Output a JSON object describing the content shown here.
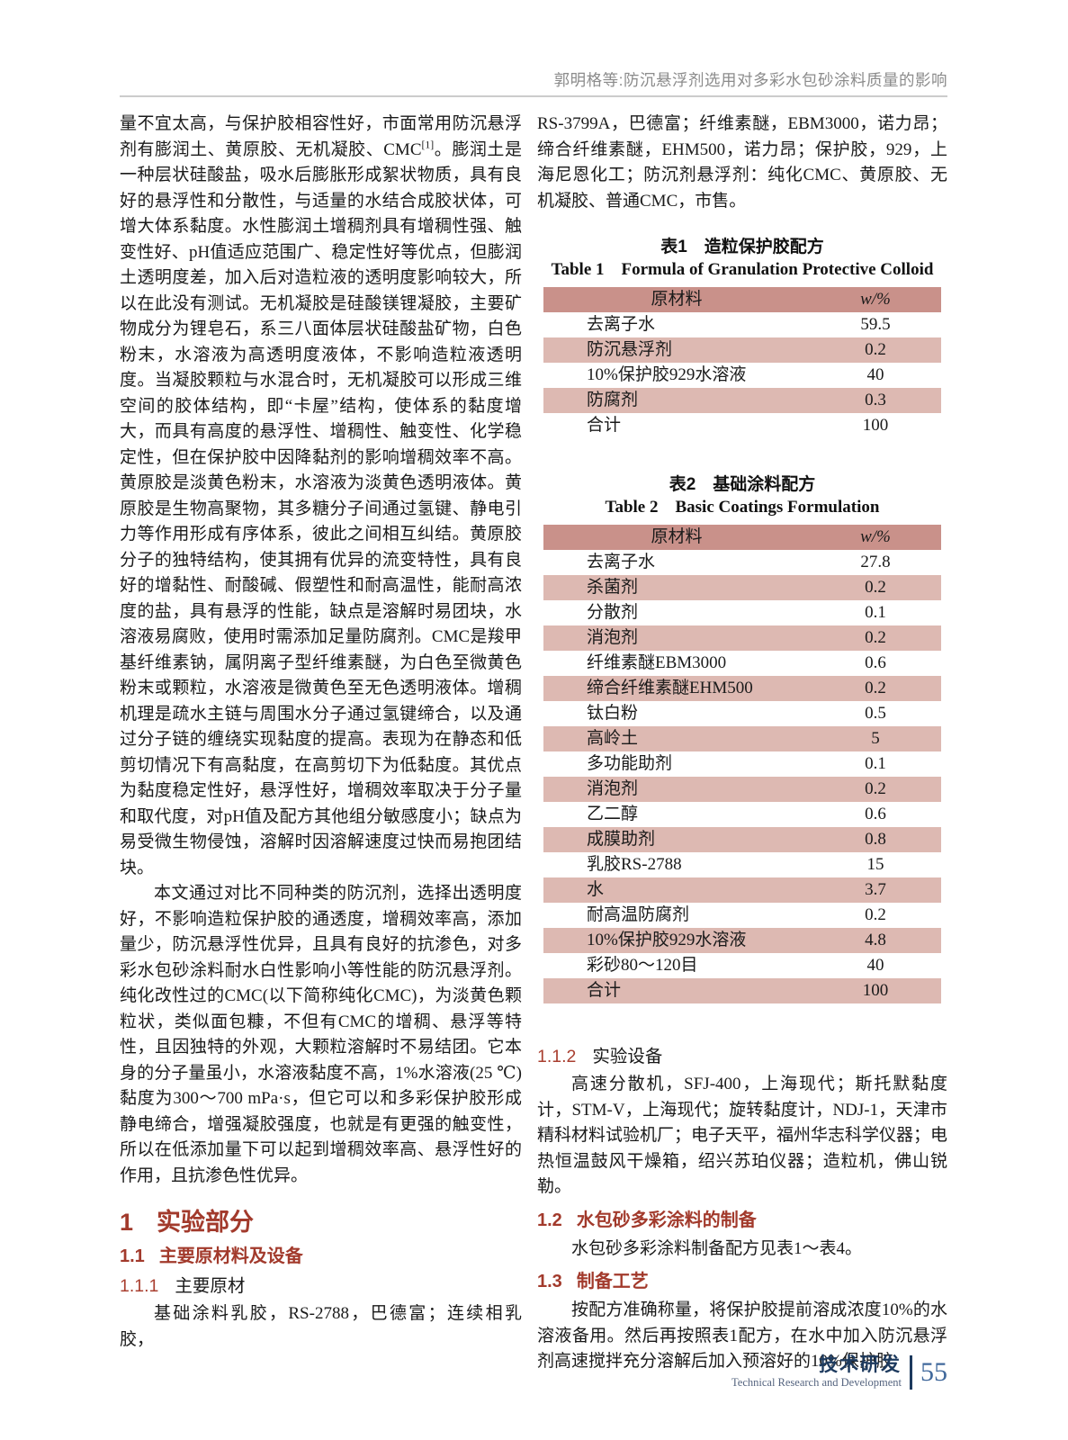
{
  "running_head": "郭明格等:防沉悬浮剂选用对多彩水包砂涂料质量的影响",
  "colors": {
    "accent_red": "#a23a2c",
    "table_header_bg": "#c9918a",
    "table_stripe_bg": "#ddb9b2",
    "footer_navy": "#1d3a5e",
    "page_number_blue": "#41699c",
    "running_head_gray": "#8b8b8b"
  },
  "left_column": {
    "p1": "量不宜太高，与保护胶相容性好，市面常用防沉悬浮剂有膨润土、黄原胶、无机凝胶、CMC[1]。膨润土是一种层状硅酸盐，吸水后膨胀形成絮状物质，具有良好的悬浮性和分散性，与适量的水结合成胶状体，可增大体系黏度。水性膨润土增稠剂具有增稠性强、触变性好、pH值适应范围广、稳定性好等优点，但膨润土透明度差，加入后对造粒液的透明度影响较大，所以在此没有测试。无机凝胶是硅酸镁锂凝胶，主要矿物成分为锂皂石，系三八面体层状硅酸盐矿物，白色粉末，水溶液为高透明度液体，不影响造粒液透明度。当凝胶颗粒与水混合时，无机凝胶可以形成三维空间的胶体结构，即“卡屋”结构，使体系的黏度增大，而具有高度的悬浮性、增稠性、触变性、化学稳定性，但在保护胶中因降黏剂的影响增稠效率不高。黄原胶是淡黄色粉末，水溶液为淡黄色透明液体。黄原胶是生物高聚物，其多糖分子间通过氢键、静电引力等作用形成有序体系，彼此之间相互纠结。黄原胶分子的独特结构，使其拥有优异的流变特性，具有良好的增黏性、耐酸碱、假塑性和耐高温性，能耐高浓度的盐，具有悬浮的性能，缺点是溶解时易团块，水溶液易腐败，使用时需添加足量防腐剂。CMC是羧甲基纤维素钠，属阴离子型纤维素醚，为白色至微黄色粉末或颗粒，水溶液是微黄色至无色透明液体。增稠机理是疏水主链与周围水分子通过氢键缔合，以及通过分子链的缠绕实现黏度的提高。表现为在静态和低剪切情况下有高黏度，在高剪切下为低黏度。其优点为黏度稳定性好，悬浮性好，增稠效率取决于分子量和取代度，对pH值及配方其他组分敏感度小；缺点为易受微生物侵蚀，溶解时因溶解速度过快而易抱团结块。",
    "p2": "本文通过对比不同种类的防沉剂，选择出透明度好，不影响造粒保护胶的通透度，增稠效率高，添加量少，防沉悬浮性优异，且具有良好的抗渗色，对多彩水包砂涂料耐水白性影响小等性能的防沉悬浮剂。纯化改性过的CMC(以下简称纯化CMC)，为淡黄色颗粒状，类似面包糠，不但有CMC的增稠、悬浮等特性，且因独特的外观，大颗粒溶解时不易结团。它本身的分子量虽小，水溶液黏度不高，1%水溶液(25 ℃)黏度为300～700 mPa·s，但它可以和多彩保护胶形成静电缔合，增强凝胶强度，也就是有更强的触变性，所以在低添加量下可以起到增稠效率高、悬浮性好的作用，且抗渗色性优异。",
    "h1": {
      "num": "1",
      "title": "实验部分"
    },
    "h11": {
      "num": "1.1",
      "title": "主要原材料及设备"
    },
    "h111": {
      "num": "1.1.1",
      "title": "主要原材"
    },
    "p3": "基础涂料乳胶，RS-2788，巴德富；连续相乳胶，"
  },
  "right_column": {
    "p1": "RS-3799A，巴德富；纤维素醚，EBM3000，诺力昂；缔合纤维素醚，EHM500，诺力昂；保护胶，929，上海尼恩化工；防沉剂悬浮剂：纯化CMC、黄原胶、无机凝胶、普通CMC，市售。",
    "table1": {
      "caption_zh": "表1　造粒保护胶配方",
      "caption_en": "Table 1　Formula of Granulation Protective Colloid",
      "headers": [
        "原材料",
        "w/%"
      ],
      "rows": [
        [
          "去离子水",
          "59.5"
        ],
        [
          "防沉悬浮剂",
          "0.2"
        ],
        [
          "10%保护胶929水溶液",
          "40"
        ],
        [
          "防腐剂",
          "0.3"
        ],
        [
          "合计",
          "100"
        ]
      ]
    },
    "table2": {
      "caption_zh": "表2　基础涂料配方",
      "caption_en": "Table 2　Basic Coatings Formulation",
      "headers": [
        "原材料",
        "w/%"
      ],
      "rows": [
        [
          "去离子水",
          "27.8"
        ],
        [
          "杀菌剂",
          "0.2"
        ],
        [
          "分散剂",
          "0.1"
        ],
        [
          "消泡剂",
          "0.2"
        ],
        [
          "纤维素醚EBM3000",
          "0.6"
        ],
        [
          "缔合纤维素醚EHM500",
          "0.2"
        ],
        [
          "钛白粉",
          "0.5"
        ],
        [
          "高岭土",
          "5"
        ],
        [
          "多功能助剂",
          "0.1"
        ],
        [
          "消泡剂",
          "0.2"
        ],
        [
          "乙二醇",
          "0.6"
        ],
        [
          "成膜助剂",
          "0.8"
        ],
        [
          "乳胶RS-2788",
          "15"
        ],
        [
          "水",
          "3.7"
        ],
        [
          "耐高温防腐剂",
          "0.2"
        ],
        [
          "10%保护胶929水溶液",
          "4.8"
        ],
        [
          "彩砂80～120目",
          "40"
        ],
        [
          "合计",
          "100"
        ]
      ]
    },
    "h112": {
      "num": "1.1.2",
      "title": "实验设备"
    },
    "p2": "高速分散机，SFJ-400，上海现代；斯托默黏度计，STM-V，上海现代；旋转黏度计，NDJ-1，天津市精科材料试验机厂；电子天平，福州华志科学仪器；电热恒温鼓风干燥箱，绍兴苏珀仪器；造粒机，佛山锐勒。",
    "h12": {
      "num": "1.2",
      "title": "水包砂多彩涂料的制备"
    },
    "p3": "水包砂多彩涂料制备配方见表1～表4。",
    "h13": {
      "num": "1.3",
      "title": "制备工艺"
    },
    "p4": "按配方准确称量，将保护胶提前溶成浓度10%的水溶液备用。然后再按照表1配方，在水中加入防沉悬浮剂高速搅拌充分溶解后加入预溶好的10%保护胶"
  },
  "footer": {
    "section_zh": "技术研发",
    "section_en": "Technical Research and Development",
    "page_number": "55"
  }
}
